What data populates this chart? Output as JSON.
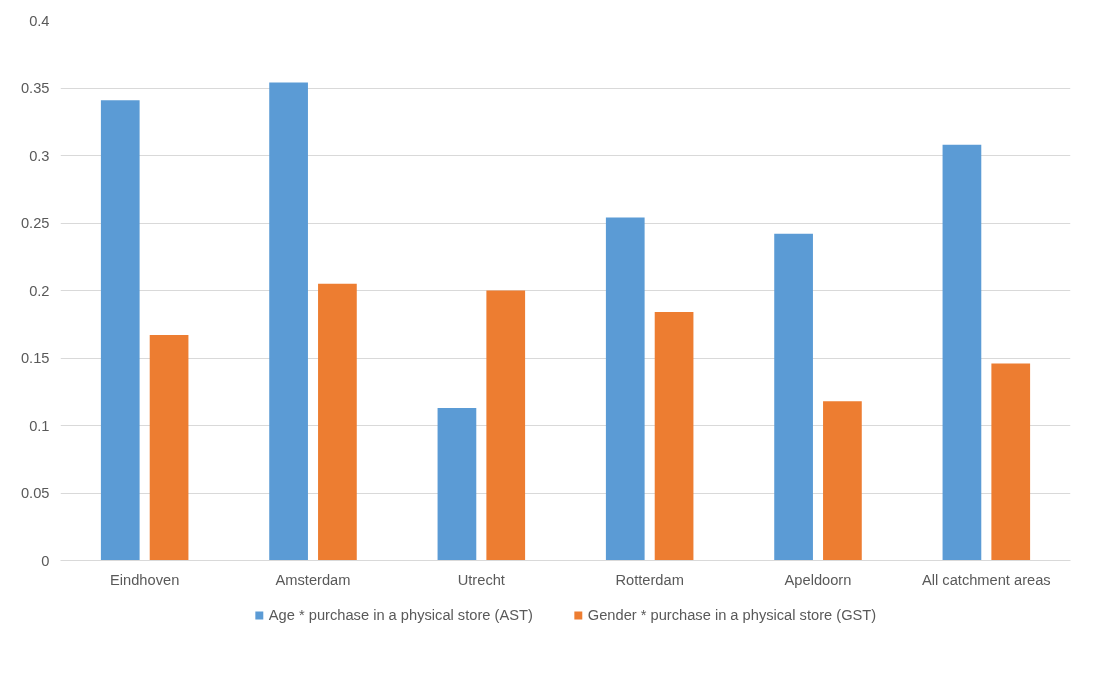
{
  "chart_data": {
    "type": "bar",
    "categories": [
      "Eindhoven",
      "Amsterdam",
      "Utrecht",
      "Rotterdam",
      "Apeldoorn",
      "All catchment areas"
    ],
    "series": [
      {
        "name": "Age * purchase in a physical store (AST)",
        "color": "#5b9bd5",
        "values": [
          0.341,
          0.354,
          0.113,
          0.254,
          0.242,
          0.308
        ]
      },
      {
        "name": "Gender * purchase in a physical store (GST)",
        "color": "#ed7d31",
        "values": [
          0.167,
          0.205,
          0.2,
          0.184,
          0.118,
          0.146
        ]
      }
    ],
    "ylim": [
      0,
      0.4
    ],
    "yticks": [
      0,
      0.05,
      0.1,
      0.15,
      0.2,
      0.25,
      0.3,
      0.35,
      0.4
    ],
    "grid": "y",
    "legend": "bottom"
  }
}
